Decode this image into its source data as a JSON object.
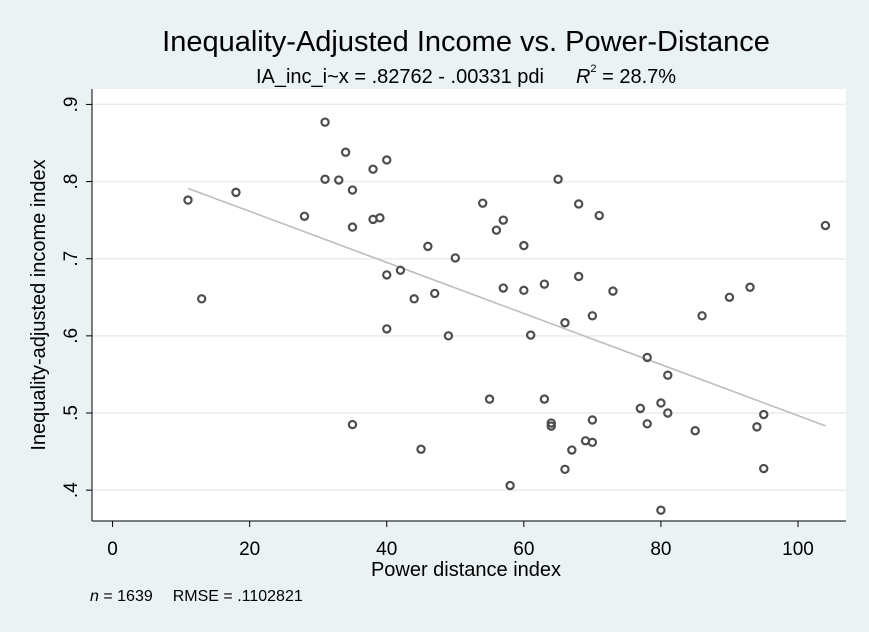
{
  "chart_data": {
    "type": "scatter",
    "title": "Inequality-Adjusted Income vs. Power-Distance",
    "subtitle_equation": "IA_inc_i~x = .82762 - .00331 pdi",
    "subtitle_r2_letter": "R",
    "subtitle_r2_exp": "2",
    "subtitle_r2_value": " = 28.7%",
    "xlabel": "Power distance index",
    "ylabel": "Inequality-adjusted income index",
    "footnote_n_letter": "n",
    "footnote_n_value": " = 1639",
    "footnote_rmse": "RMSE =  .1102821",
    "xlim": [
      -3,
      107
    ],
    "ylim": [
      0.36,
      0.92
    ],
    "x_ticks": [
      0,
      20,
      40,
      60,
      80,
      100
    ],
    "x_tick_labels": [
      "0",
      "20",
      "40",
      "60",
      "80",
      "100"
    ],
    "y_ticks": [
      0.4,
      0.5,
      0.6,
      0.7,
      0.8,
      0.9
    ],
    "y_tick_labels": [
      ".4",
      ".5",
      ".6",
      ".7",
      ".8",
      ".9"
    ],
    "grid": true,
    "fit_line": {
      "intercept": 0.82762,
      "slope": -0.00331,
      "x_range": [
        11,
        104
      ]
    },
    "colors": {
      "background": "#eaf2f3",
      "plot_area": "#ffffff",
      "marker": "#4d4d4d",
      "fit_line": "#bdbdbd",
      "grid": "#e6eef0"
    },
    "points": [
      {
        "x": 11,
        "y": 0.776
      },
      {
        "x": 13,
        "y": 0.648
      },
      {
        "x": 18,
        "y": 0.786
      },
      {
        "x": 28,
        "y": 0.755
      },
      {
        "x": 31,
        "y": 0.877
      },
      {
        "x": 31,
        "y": 0.803
      },
      {
        "x": 33,
        "y": 0.802
      },
      {
        "x": 34,
        "y": 0.838
      },
      {
        "x": 35,
        "y": 0.789
      },
      {
        "x": 35,
        "y": 0.741
      },
      {
        "x": 35,
        "y": 0.485
      },
      {
        "x": 38,
        "y": 0.816
      },
      {
        "x": 38,
        "y": 0.751
      },
      {
        "x": 39,
        "y": 0.753
      },
      {
        "x": 40,
        "y": 0.828
      },
      {
        "x": 40,
        "y": 0.679
      },
      {
        "x": 40,
        "y": 0.609
      },
      {
        "x": 42,
        "y": 0.685
      },
      {
        "x": 44,
        "y": 0.648
      },
      {
        "x": 45,
        "y": 0.453
      },
      {
        "x": 46,
        "y": 0.716
      },
      {
        "x": 47,
        "y": 0.655
      },
      {
        "x": 49,
        "y": 0.6
      },
      {
        "x": 50,
        "y": 0.701
      },
      {
        "x": 54,
        "y": 0.772
      },
      {
        "x": 55,
        "y": 0.518
      },
      {
        "x": 56,
        "y": 0.737
      },
      {
        "x": 57,
        "y": 0.75
      },
      {
        "x": 57,
        "y": 0.662
      },
      {
        "x": 58,
        "y": 0.406
      },
      {
        "x": 60,
        "y": 0.717
      },
      {
        "x": 60,
        "y": 0.659
      },
      {
        "x": 61,
        "y": 0.601
      },
      {
        "x": 63,
        "y": 0.667
      },
      {
        "x": 63,
        "y": 0.518
      },
      {
        "x": 64,
        "y": 0.487
      },
      {
        "x": 64,
        "y": 0.483
      },
      {
        "x": 65,
        "y": 0.803
      },
      {
        "x": 66,
        "y": 0.617
      },
      {
        "x": 66,
        "y": 0.427
      },
      {
        "x": 67,
        "y": 0.452
      },
      {
        "x": 68,
        "y": 0.771
      },
      {
        "x": 68,
        "y": 0.677
      },
      {
        "x": 69,
        "y": 0.464
      },
      {
        "x": 70,
        "y": 0.626
      },
      {
        "x": 70,
        "y": 0.491
      },
      {
        "x": 70,
        "y": 0.462
      },
      {
        "x": 71,
        "y": 0.756
      },
      {
        "x": 73,
        "y": 0.658
      },
      {
        "x": 77,
        "y": 0.506
      },
      {
        "x": 78,
        "y": 0.572
      },
      {
        "x": 78,
        "y": 0.486
      },
      {
        "x": 80,
        "y": 0.513
      },
      {
        "x": 80,
        "y": 0.374
      },
      {
        "x": 81,
        "y": 0.549
      },
      {
        "x": 81,
        "y": 0.5
      },
      {
        "x": 85,
        "y": 0.477
      },
      {
        "x": 86,
        "y": 0.626
      },
      {
        "x": 90,
        "y": 0.65
      },
      {
        "x": 93,
        "y": 0.663
      },
      {
        "x": 94,
        "y": 0.482
      },
      {
        "x": 95,
        "y": 0.498
      },
      {
        "x": 95,
        "y": 0.428
      },
      {
        "x": 104,
        "y": 0.743
      }
    ]
  }
}
